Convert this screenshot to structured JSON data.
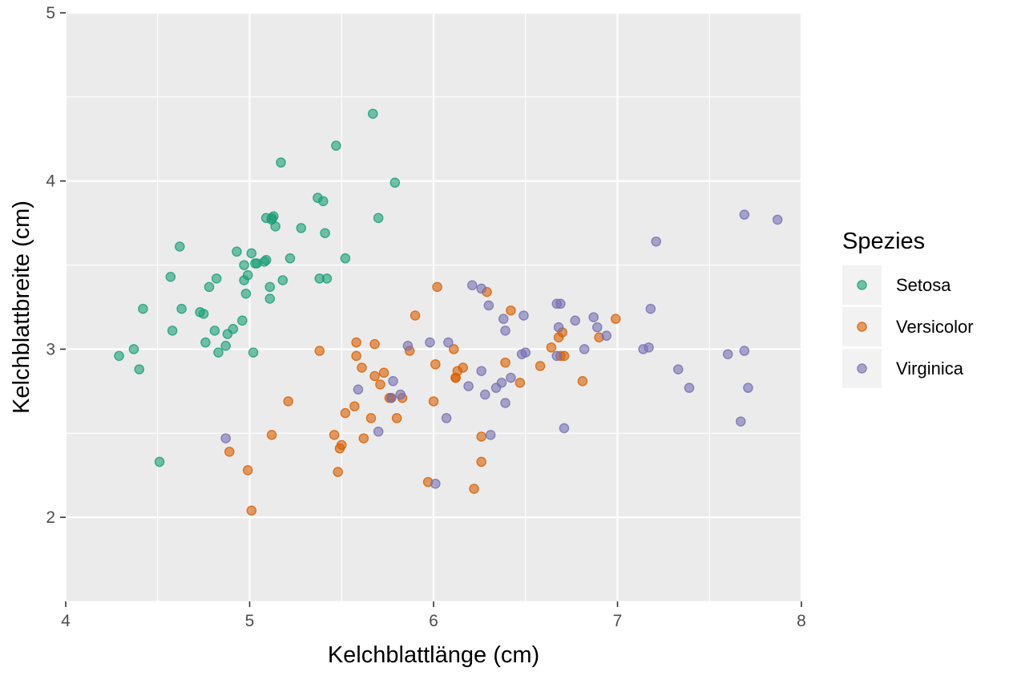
{
  "chart_data": {
    "type": "scatter",
    "title": "",
    "xlabel": "Kelchblattlänge (cm)",
    "ylabel": "Kelchblattbreite (cm)",
    "xlim": [
      4,
      8
    ],
    "ylim": [
      1.5,
      5
    ],
    "xticks": [
      "4",
      "5",
      "6",
      "7",
      "8"
    ],
    "yticks": [
      "2",
      "3",
      "4",
      "5"
    ],
    "grid": true,
    "legend": {
      "title": "Spezies",
      "position": "right"
    },
    "series": [
      {
        "name": "Setosa",
        "color": "#1b9e77",
        "x": [
          4.29,
          4.37,
          4.4,
          4.42,
          4.51,
          4.57,
          4.58,
          4.62,
          4.63,
          4.73,
          4.75,
          4.76,
          4.78,
          4.81,
          4.82,
          4.83,
          4.87,
          4.88,
          4.91,
          4.93,
          4.96,
          4.97,
          4.97,
          4.98,
          4.99,
          5.01,
          5.02,
          5.03,
          5.04,
          5.08,
          5.09,
          5.09,
          5.11,
          5.11,
          5.12,
          5.12,
          5.13,
          5.14,
          5.17,
          5.18,
          5.22,
          5.28,
          5.37,
          5.38,
          5.4,
          5.41,
          5.42,
          5.47,
          5.52,
          5.67,
          5.7,
          5.79
        ],
        "y": [
          2.96,
          3.0,
          2.88,
          3.24,
          2.33,
          3.43,
          3.11,
          3.61,
          3.24,
          3.22,
          3.21,
          3.04,
          3.37,
          3.11,
          3.42,
          2.98,
          3.02,
          3.09,
          3.12,
          3.58,
          3.17,
          3.5,
          3.41,
          3.33,
          3.44,
          3.57,
          2.98,
          3.51,
          3.51,
          3.52,
          3.53,
          3.78,
          3.37,
          3.3,
          3.77,
          3.78,
          3.79,
          3.73,
          4.11,
          3.41,
          3.54,
          3.72,
          3.9,
          3.42,
          3.88,
          3.69,
          3.42,
          4.21,
          3.54,
          4.4,
          3.78,
          3.99
        ]
      },
      {
        "name": "Versicolor",
        "color": "#d95f02",
        "x": [
          4.89,
          4.99,
          5.01,
          5.12,
          5.21,
          5.38,
          5.46,
          5.48,
          5.49,
          5.5,
          5.52,
          5.57,
          5.58,
          5.58,
          5.61,
          5.62,
          5.66,
          5.68,
          5.68,
          5.71,
          5.73,
          5.76,
          5.77,
          5.8,
          5.83,
          5.87,
          5.9,
          5.97,
          6.0,
          6.01,
          6.02,
          6.11,
          6.12,
          6.12,
          6.13,
          6.16,
          6.22,
          6.26,
          6.26,
          6.29,
          6.39,
          6.42,
          6.47,
          6.58,
          6.64,
          6.68,
          6.69,
          6.7,
          6.71,
          6.81,
          6.9,
          6.99
        ],
        "y": [
          2.39,
          2.28,
          2.04,
          2.49,
          2.69,
          2.99,
          2.49,
          2.27,
          2.41,
          2.43,
          2.62,
          2.66,
          3.04,
          2.96,
          2.89,
          2.47,
          2.59,
          2.84,
          3.03,
          2.79,
          2.86,
          2.71,
          2.71,
          2.59,
          2.71,
          2.99,
          3.2,
          2.21,
          2.69,
          2.91,
          3.37,
          3.0,
          2.83,
          2.83,
          2.87,
          2.89,
          2.17,
          2.33,
          2.48,
          3.34,
          2.92,
          3.23,
          2.8,
          2.9,
          3.01,
          3.07,
          2.96,
          3.1,
          2.96,
          2.81,
          3.07,
          3.18
        ]
      },
      {
        "name": "Virginica",
        "color": "#7570b3",
        "x": [
          4.87,
          5.59,
          5.7,
          5.77,
          5.78,
          5.82,
          5.86,
          5.98,
          6.01,
          6.07,
          6.08,
          6.19,
          6.21,
          6.26,
          6.26,
          6.28,
          6.3,
          6.31,
          6.34,
          6.37,
          6.38,
          6.39,
          6.39,
          6.42,
          6.48,
          6.49,
          6.5,
          6.67,
          6.67,
          6.68,
          6.69,
          6.71,
          6.77,
          6.82,
          6.87,
          6.89,
          6.94,
          7.14,
          7.17,
          7.18,
          7.21,
          7.33,
          7.39,
          7.6,
          7.67,
          7.69,
          7.69,
          7.71,
          7.87
        ],
        "y": [
          2.47,
          2.76,
          2.51,
          2.71,
          2.81,
          2.73,
          3.02,
          3.04,
          2.2,
          2.59,
          3.04,
          2.78,
          3.38,
          3.36,
          2.87,
          2.73,
          3.26,
          2.49,
          2.77,
          2.8,
          3.18,
          3.11,
          2.68,
          2.83,
          2.97,
          3.2,
          2.98,
          3.27,
          2.96,
          3.13,
          3.27,
          2.53,
          3.17,
          3.0,
          3.19,
          3.13,
          3.08,
          3.0,
          3.01,
          3.24,
          3.64,
          2.88,
          2.77,
          2.97,
          2.57,
          3.8,
          2.99,
          2.77,
          3.77
        ]
      }
    ]
  }
}
